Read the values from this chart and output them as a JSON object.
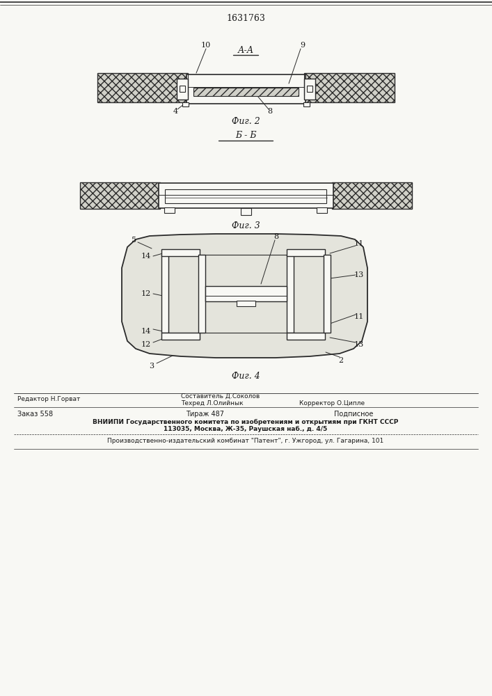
{
  "title": "1631763",
  "title_fontsize": 9,
  "bg_color": "#f8f8f4",
  "fig2_label": "Фиг. 2",
  "fig3_label": "Фиг. 3",
  "fig4_label": "Фиг. 4",
  "section_aa": "А-А",
  "section_bb": "Б - Б",
  "footer_line1": "Редактор Н.Горват",
  "footer_col1": "Составитель Д.Соколов",
  "footer_col2": "Техред Л.Олийнык",
  "footer_col3": "Корректор О.Ципле",
  "footer_order": "Заказ 558",
  "footer_tirazh": "Тираж 487",
  "footer_podp": "Подписное",
  "footer_vnipi1": "ВНИИПИ Государственного комитета по изобретениям и открытиям при ГКНТ СССР",
  "footer_vnipi2": "113035, Москва, Ж-35, Раушская наб., д. 4/5",
  "footer_prod": "Производственно-издательский комбинат \"Патент\", г. Ужгород, ул. Гагарина, 101",
  "text_color": "#1a1a1a",
  "line_color": "#2a2a2a",
  "hatch_fc": "#d0d0c8",
  "body_fc": "#f8f8f4"
}
